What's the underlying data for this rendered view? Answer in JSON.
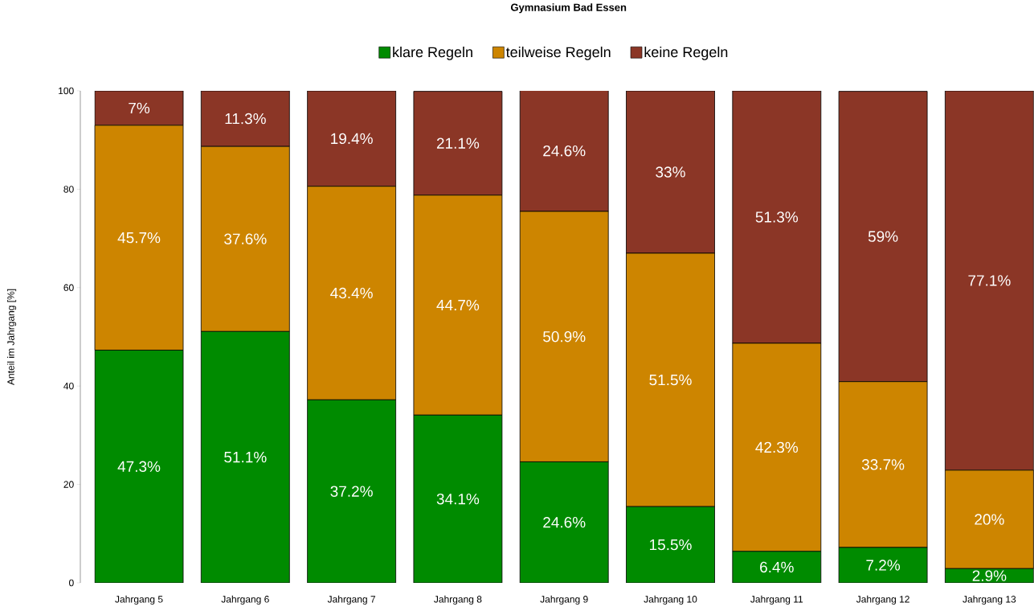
{
  "chart_data": {
    "type": "bar",
    "title": "Gymnasium Bad Essen",
    "ylabel": "Anteil im Jahrgang [%]",
    "categories": [
      "Jahrgang 5",
      "Jahrgang 6",
      "Jahrgang 7",
      "Jahrgang 8",
      "Jahrgang 9",
      "Jahrgang 10",
      "Jahrgang 11",
      "Jahrgang 12",
      "Jahrgang 13"
    ],
    "stacked": true,
    "legend": "top",
    "ylim": [
      0,
      100
    ],
    "yticks": [
      0,
      20,
      40,
      60,
      80,
      100
    ],
    "series": [
      {
        "name": "klare Regeln",
        "color": "#008b00",
        "values": [
          47.3,
          51.1,
          37.2,
          34.1,
          24.6,
          15.5,
          6.4,
          7.2,
          2.9
        ],
        "value_labels": [
          "47.3%",
          "51.1%",
          "37.2%",
          "34.1%",
          "24.6%",
          "15.5%",
          "6.4%",
          "7.2%",
          "2.9%"
        ]
      },
      {
        "name": "teilweise Regeln",
        "color": "#cd8500",
        "values": [
          45.7,
          37.6,
          43.4,
          44.7,
          50.9,
          51.5,
          42.3,
          33.7,
          20
        ],
        "value_labels": [
          "45.7%",
          "37.6%",
          "43.4%",
          "44.7%",
          "50.9%",
          "51.5%",
          "42.3%",
          "33.7%",
          "20%"
        ]
      },
      {
        "name": "keine Regeln",
        "color": "#8b3626",
        "values": [
          7,
          11.3,
          19.4,
          21.1,
          24.6,
          33,
          51.3,
          59,
          77.1
        ],
        "value_labels": [
          "7%",
          "11.3%",
          "19.4%",
          "21.1%",
          "24.6%",
          "33%",
          "51.3%",
          "59%",
          "77.1%"
        ]
      }
    ]
  }
}
